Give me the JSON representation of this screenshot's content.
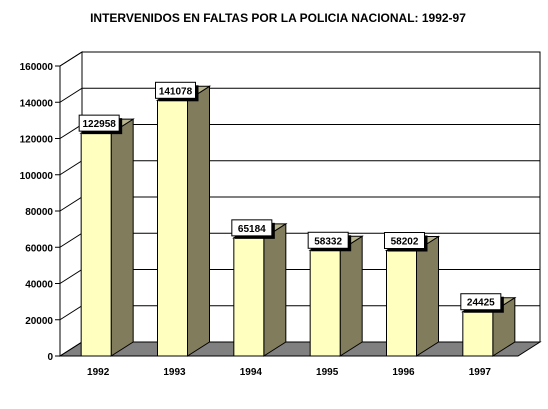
{
  "chart_data": {
    "type": "bar",
    "title": "INTERVENIDOS EN FALTAS POR LA POLICIA NACIONAL: 1992-97",
    "xlabel": "",
    "ylabel": "",
    "categories": [
      "1992",
      "1993",
      "1994",
      "1995",
      "1996",
      "1997"
    ],
    "values": [
      122958,
      141078,
      65184,
      58332,
      58202,
      24425
    ],
    "data_labels": [
      "122958",
      "141078",
      "65184",
      "58332",
      "58202",
      "24425"
    ],
    "ylim": [
      0,
      160000
    ],
    "yticks": [
      "0",
      "20000",
      "40000",
      "60000",
      "80000",
      "100000",
      "120000",
      "140000",
      "160000"
    ],
    "grid": true,
    "legend": "none",
    "style": "3d-column"
  },
  "colors": {
    "bar_front": "#ffffc0",
    "bar_side": "#807c5c",
    "bar_top": "#b8b48e",
    "floor": "#808080",
    "wall": "#ffffff",
    "gridline": "#000000",
    "label_box": "#ffffff"
  }
}
